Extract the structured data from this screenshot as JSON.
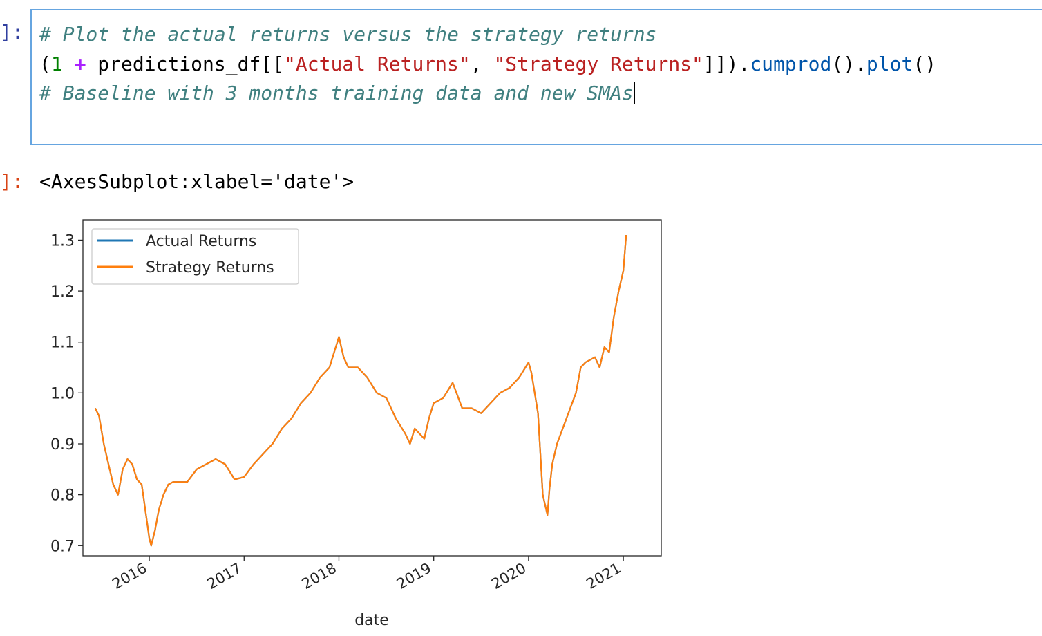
{
  "cell": {
    "in_prompt": "]:",
    "out_prompt": "]:",
    "comment1": "# Plot the actual returns versus the strategy returns",
    "code_open": "(",
    "code_one": "1",
    "code_plus": "+",
    "code_mid1": " predictions_df[[",
    "code_str1": "\"Actual Returns\"",
    "code_comma": ", ",
    "code_str2": "\"Strategy Returns\"",
    "code_mid2": "]]).",
    "code_meth1": "cumprod",
    "code_mid3": "().",
    "code_meth2": "plot",
    "code_end": "()",
    "comment2": "# Baseline with 3 months training data and new SMAs",
    "output_text": "<AxesSubplot:xlabel='date'>"
  },
  "colors": {
    "actual": "#1f77b4",
    "strategy": "#ff7f0e"
  },
  "chart_data": {
    "type": "line",
    "xlabel": "date",
    "ylabel": "",
    "xlim": [
      2015.3,
      2021.4
    ],
    "ylim": [
      0.68,
      1.34
    ],
    "x_ticks": [
      2016,
      2017,
      2018,
      2019,
      2020,
      2021
    ],
    "x_tick_labels": [
      "2016",
      "2017",
      "2018",
      "2019",
      "2020",
      "2021"
    ],
    "y_ticks": [
      0.7,
      0.8,
      0.9,
      1.0,
      1.1,
      1.2,
      1.3
    ],
    "y_tick_labels": [
      "0.7",
      "0.8",
      "0.9",
      "1.0",
      "1.1",
      "1.2",
      "1.3"
    ],
    "legend": [
      "Actual Returns",
      "Strategy Returns"
    ],
    "legend_position": "top-left",
    "x": [
      2015.43,
      2015.47,
      2015.52,
      2015.57,
      2015.62,
      2015.67,
      2015.72,
      2015.77,
      2015.82,
      2015.87,
      2015.92,
      2016.0,
      2016.02,
      2016.06,
      2016.1,
      2016.15,
      2016.2,
      2016.25,
      2016.3,
      2016.4,
      2016.5,
      2016.6,
      2016.7,
      2016.8,
      2016.9,
      2017.0,
      2017.1,
      2017.2,
      2017.3,
      2017.4,
      2017.5,
      2017.6,
      2017.7,
      2017.8,
      2017.9,
      2018.0,
      2018.05,
      2018.1,
      2018.2,
      2018.3,
      2018.4,
      2018.5,
      2018.6,
      2018.7,
      2018.75,
      2018.8,
      2018.85,
      2018.9,
      2018.95,
      2019.0,
      2019.1,
      2019.2,
      2019.3,
      2019.4,
      2019.5,
      2019.6,
      2019.7,
      2019.8,
      2019.9,
      2020.0,
      2020.03,
      2020.1,
      2020.15,
      2020.2,
      2020.22,
      2020.25,
      2020.3,
      2020.4,
      2020.5,
      2020.55,
      2020.6,
      2020.7,
      2020.75,
      2020.8,
      2020.85,
      2020.9,
      2020.95,
      2021.0,
      2021.03
    ],
    "series": [
      {
        "name": "Actual Returns",
        "values": [
          0.97,
          0.955,
          0.9,
          0.86,
          0.82,
          0.8,
          0.85,
          0.87,
          0.86,
          0.83,
          0.82,
          0.715,
          0.7,
          0.73,
          0.77,
          0.8,
          0.82,
          0.825,
          0.825,
          0.825,
          0.85,
          0.86,
          0.87,
          0.86,
          0.83,
          0.835,
          0.86,
          0.88,
          0.9,
          0.93,
          0.95,
          0.98,
          1.0,
          1.03,
          1.05,
          1.11,
          1.07,
          1.05,
          1.05,
          1.03,
          1.0,
          0.99,
          0.95,
          0.92,
          0.9,
          0.93,
          0.92,
          0.91,
          0.95,
          0.98,
          0.99,
          1.02,
          0.97,
          0.97,
          0.96,
          0.98,
          1.0,
          1.01,
          1.03,
          1.06,
          1.04,
          0.96,
          0.8,
          0.76,
          0.81,
          0.86,
          0.9,
          0.95,
          1.0,
          1.05,
          1.06,
          1.07,
          1.05,
          1.09,
          1.08,
          1.15,
          1.2,
          1.24,
          1.31
        ]
      },
      {
        "name": "Strategy Returns",
        "values": [
          0.97,
          0.955,
          0.9,
          0.86,
          0.82,
          0.8,
          0.85,
          0.87,
          0.86,
          0.83,
          0.82,
          0.715,
          0.7,
          0.73,
          0.77,
          0.8,
          0.82,
          0.825,
          0.825,
          0.825,
          0.85,
          0.86,
          0.87,
          0.86,
          0.83,
          0.835,
          0.86,
          0.88,
          0.9,
          0.93,
          0.95,
          0.98,
          1.0,
          1.03,
          1.05,
          1.11,
          1.07,
          1.05,
          1.05,
          1.03,
          1.0,
          0.99,
          0.95,
          0.92,
          0.9,
          0.93,
          0.92,
          0.91,
          0.95,
          0.98,
          0.99,
          1.02,
          0.97,
          0.97,
          0.96,
          0.98,
          1.0,
          1.01,
          1.03,
          1.06,
          1.04,
          0.96,
          0.8,
          0.76,
          0.81,
          0.86,
          0.9,
          0.95,
          1.0,
          1.05,
          1.06,
          1.07,
          1.05,
          1.09,
          1.08,
          1.15,
          1.2,
          1.24,
          1.31
        ]
      }
    ]
  }
}
